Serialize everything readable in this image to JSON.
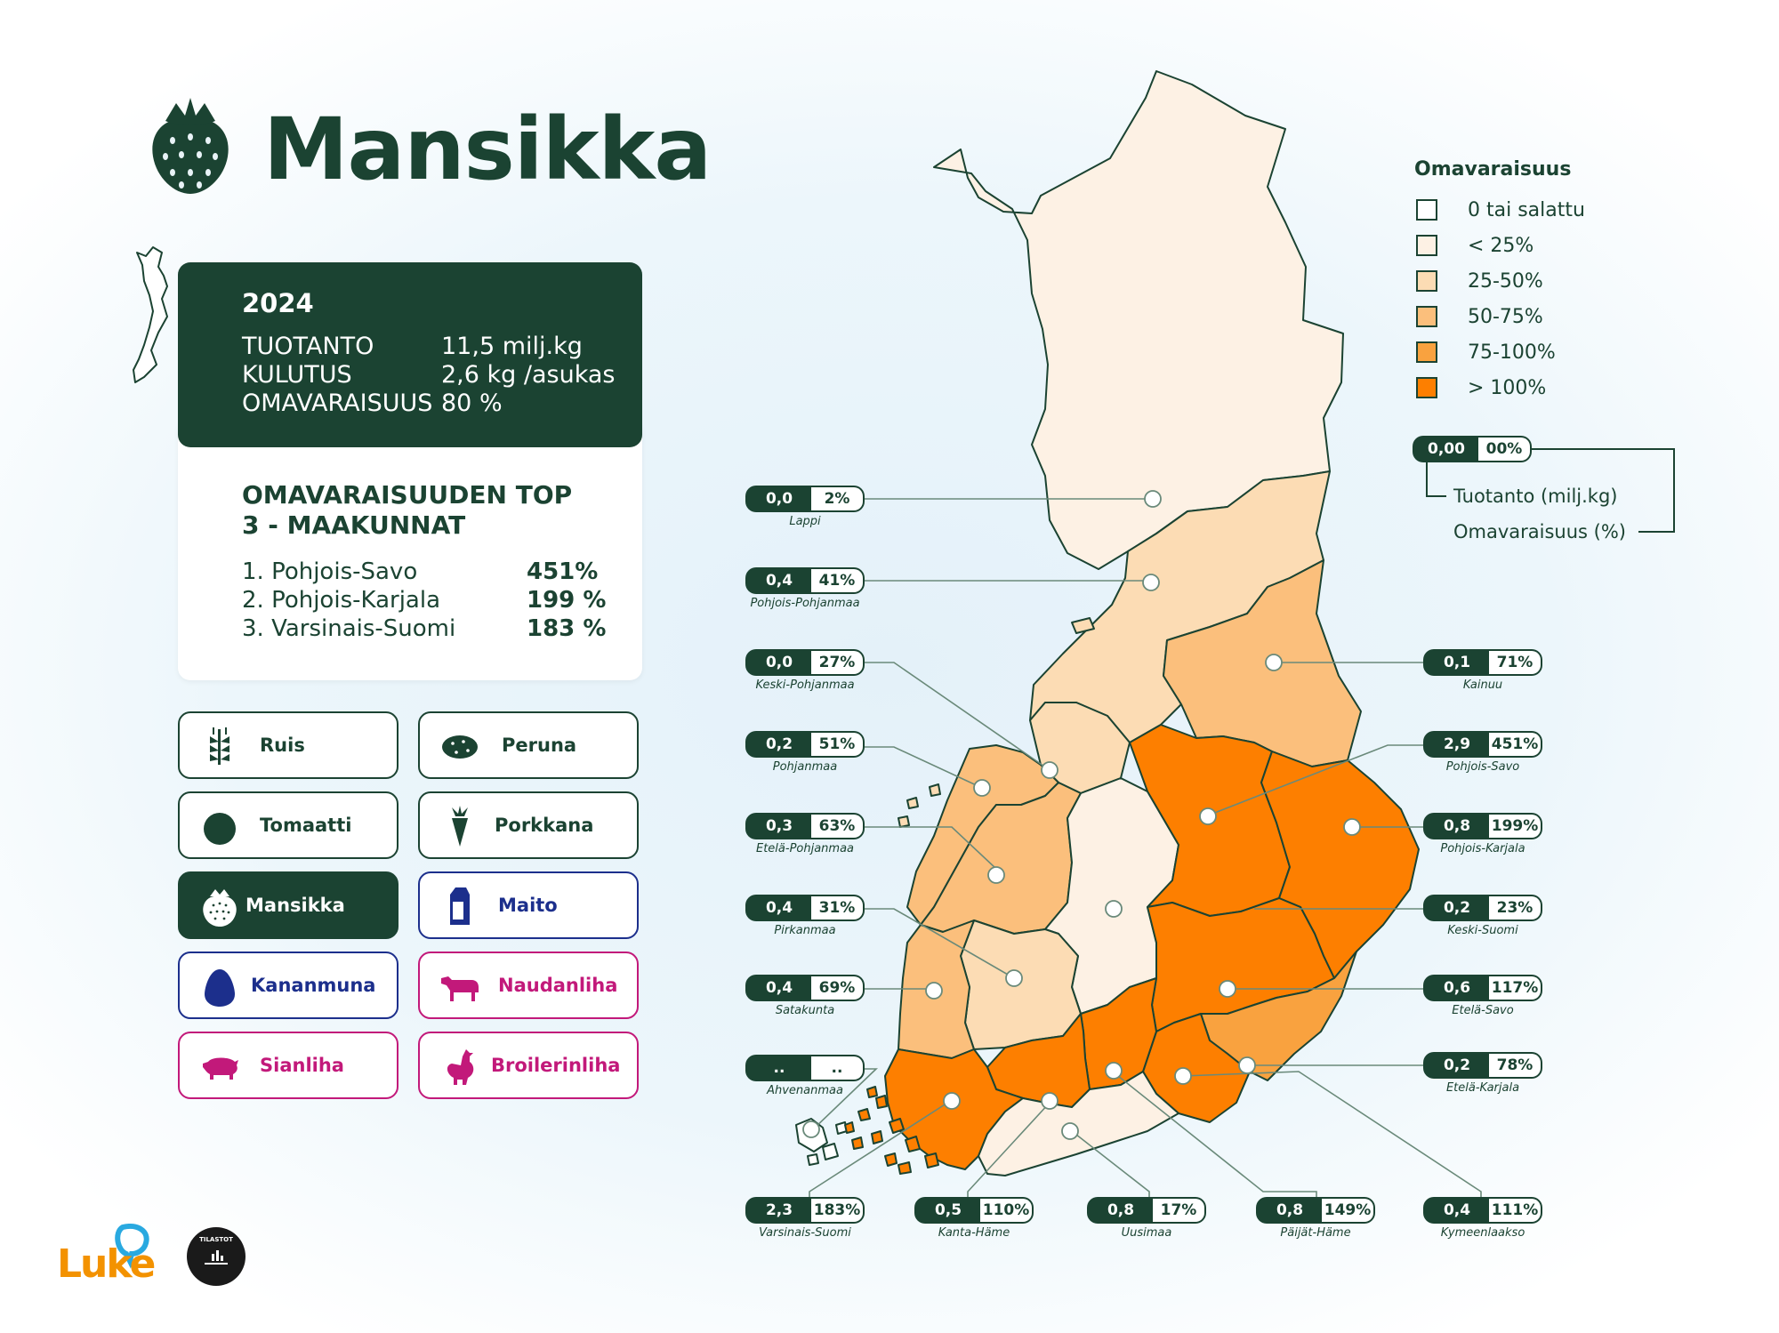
{
  "title": "Mansikka",
  "summary": {
    "year": "2024",
    "rows": [
      {
        "label": "TUOTANTO",
        "value": "11,5 milj.kg"
      },
      {
        "label": "KULUTUS",
        "value": "2,6 kg /asukas"
      },
      {
        "label": "OMAVARAISUUS",
        "value": "80 %"
      }
    ]
  },
  "top3": {
    "title": "OMAVARAISUUDEN TOP 3 - MAAKUNNAT",
    "items": [
      {
        "label": "1. Pohjois-Savo",
        "value": "451%"
      },
      {
        "label": "2. Pohjois-Karjala",
        "value": "199 %"
      },
      {
        "label": "3. Varsinais-Suomi",
        "value": "183 %"
      }
    ]
  },
  "products": [
    {
      "label": "Ruis",
      "icon": "wheat-icon",
      "group": "green"
    },
    {
      "label": "Peruna",
      "icon": "potato-icon",
      "group": "green"
    },
    {
      "label": "Tomaatti",
      "icon": "tomato-icon",
      "group": "green"
    },
    {
      "label": "Porkkana",
      "icon": "carrot-icon",
      "group": "green"
    },
    {
      "label": "Mansikka",
      "icon": "strawberry-icon",
      "group": "green",
      "active": true
    },
    {
      "label": "Maito",
      "icon": "milk-carton-icon",
      "group": "blue"
    },
    {
      "label": "Kananmuna",
      "icon": "egg-icon",
      "group": "blue"
    },
    {
      "label": "Naudanliha",
      "icon": "cow-icon",
      "group": "pink"
    },
    {
      "label": "Sianliha",
      "icon": "pig-icon",
      "group": "pink"
    },
    {
      "label": "Broilerinliha",
      "icon": "chicken-icon",
      "group": "pink"
    }
  ],
  "legend": {
    "title": "Omavaraisuus",
    "items": [
      {
        "label": "0 tai salattu",
        "color": "#ffffff"
      },
      {
        "label": "< 25%",
        "color": "#fdf1e4"
      },
      {
        "label": "25-50%",
        "color": "#fcdcb4"
      },
      {
        "label": "50-75%",
        "color": "#fbbf7c"
      },
      {
        "label": "75-100%",
        "color": "#f9a23f"
      },
      {
        "label": "> 100%",
        "color": "#fd7f00"
      }
    ],
    "sample": {
      "production": "0,00",
      "selfsufficiency": "00%"
    },
    "production_label": "Tuotanto (milj.kg)",
    "selfsufficiency_label": "Omavaraisuus (%)"
  },
  "regions": [
    {
      "name": "Lappi",
      "production": "0,0",
      "selfsufficiency": "2%"
    },
    {
      "name": "Pohjois-Pohjanmaa",
      "production": "0,4",
      "selfsufficiency": "41%"
    },
    {
      "name": "Keski-Pohjanmaa",
      "production": "0,0",
      "selfsufficiency": "27%"
    },
    {
      "name": "Pohjanmaa",
      "production": "0,2",
      "selfsufficiency": "51%"
    },
    {
      "name": "Etelä-Pohjanmaa",
      "production": "0,3",
      "selfsufficiency": "63%"
    },
    {
      "name": "Pirkanmaa",
      "production": "0,4",
      "selfsufficiency": "31%"
    },
    {
      "name": "Satakunta",
      "production": "0,4",
      "selfsufficiency": "69%"
    },
    {
      "name": "Ahvenanmaa",
      "production": "..",
      "selfsufficiency": ".."
    },
    {
      "name": "Kainuu",
      "production": "0,1",
      "selfsufficiency": "71%"
    },
    {
      "name": "Pohjois-Savo",
      "production": "2,9",
      "selfsufficiency": "451%"
    },
    {
      "name": "Pohjois-Karjala",
      "production": "0,8",
      "selfsufficiency": "199%"
    },
    {
      "name": "Keski-Suomi",
      "production": "0,2",
      "selfsufficiency": "23%"
    },
    {
      "name": "Etelä-Savo",
      "production": "0,6",
      "selfsufficiency": "117%"
    },
    {
      "name": "Etelä-Karjala",
      "production": "0,2",
      "selfsufficiency": "78%"
    },
    {
      "name": "Varsinais-Suomi",
      "production": "2,3",
      "selfsufficiency": "183%"
    },
    {
      "name": "Kanta-Häme",
      "production": "0,5",
      "selfsufficiency": "110%"
    },
    {
      "name": "Uusimaa",
      "production": "0,8",
      "selfsufficiency": "17%"
    },
    {
      "name": "Päijät-Häme",
      "production": "0,8",
      "selfsufficiency": "149%"
    },
    {
      "name": "Kymeenlaakso",
      "production": "0,4",
      "selfsufficiency": "111%"
    }
  ],
  "logos": {
    "luke": "Luke",
    "tilastot": "TILASTOT"
  }
}
